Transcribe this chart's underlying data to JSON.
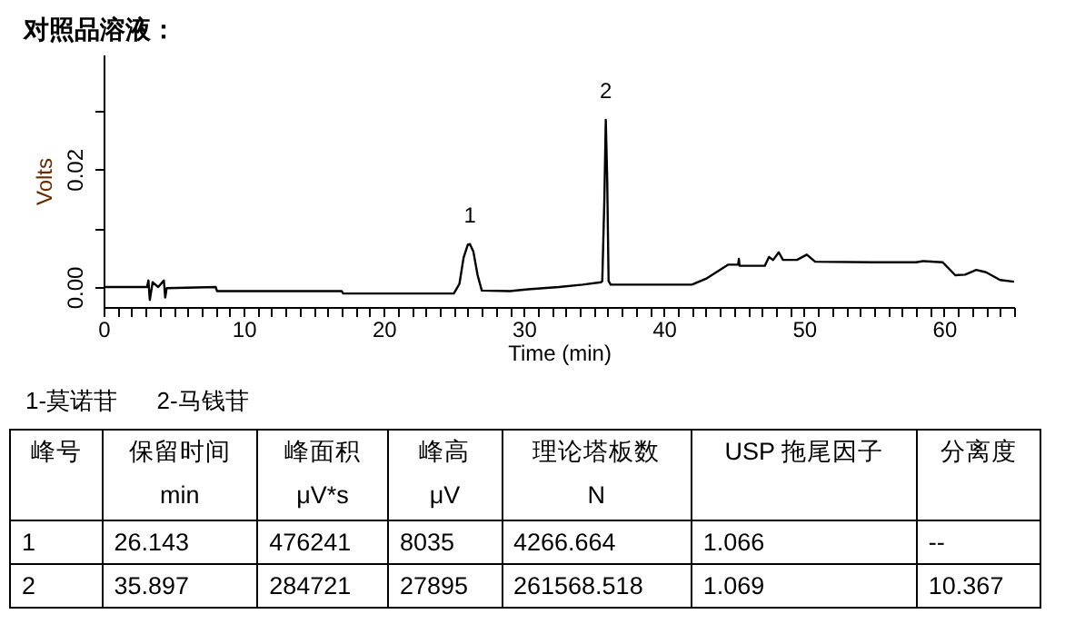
{
  "chart_data": [
    {
      "type": "line",
      "title": "对照品溶液：",
      "xlabel": "Time (min)",
      "ylabel": "Volts",
      "xlim": [
        0,
        65
      ],
      "ylim": [
        -0.0034,
        0.0395
      ],
      "xticks": [
        0,
        {
          "value": 1,
          "label": null
        },
        {
          "value": 2,
          "label": null
        },
        {
          "value": 3,
          "label": null
        },
        {
          "value": 4,
          "label": null
        },
        {
          "value": 5,
          "label": null
        },
        {
          "value": 6,
          "label": null
        },
        {
          "value": 7,
          "label": null
        },
        {
          "value": 8,
          "label": null
        },
        {
          "value": 9,
          "label": null
        },
        10,
        {
          "value": 11,
          "label": null
        },
        {
          "value": 12,
          "label": null
        },
        {
          "value": 13,
          "label": null
        },
        {
          "value": 14,
          "label": null
        },
        {
          "value": 15,
          "label": null
        },
        {
          "value": 16,
          "label": null
        },
        {
          "value": 17,
          "label": null
        },
        {
          "value": 18,
          "label": null
        },
        {
          "value": 19,
          "label": null
        },
        20,
        {
          "value": 21,
          "label": null
        },
        {
          "value": 22,
          "label": null
        },
        {
          "value": 23,
          "label": null
        },
        {
          "value": 24,
          "label": null
        },
        {
          "value": 25,
          "label": null
        },
        {
          "value": 26,
          "label": null
        },
        {
          "value": 27,
          "label": null
        },
        {
          "value": 28,
          "label": null
        },
        {
          "value": 29,
          "label": null
        },
        30,
        {
          "value": 31,
          "label": null
        },
        {
          "value": 32,
          "label": null
        },
        {
          "value": 33,
          "label": null
        },
        {
          "value": 34,
          "label": null
        },
        {
          "value": 35,
          "label": null
        },
        {
          "value": 36,
          "label": null
        },
        {
          "value": 37,
          "label": null
        },
        {
          "value": 38,
          "label": null
        },
        {
          "value": 39,
          "label": null
        },
        40,
        {
          "value": 41,
          "label": null
        },
        {
          "value": 42,
          "label": null
        },
        {
          "value": 43,
          "label": null
        },
        {
          "value": 44,
          "label": null
        },
        {
          "value": 45,
          "label": null
        },
        {
          "value": 46,
          "label": null
        },
        {
          "value": 47,
          "label": null
        },
        {
          "value": 48,
          "label": null
        },
        {
          "value": 49,
          "label": null
        },
        50,
        {
          "value": 51,
          "label": null
        },
        {
          "value": 52,
          "label": null
        },
        {
          "value": 53,
          "label": null
        },
        {
          "value": 54,
          "label": null
        },
        {
          "value": 55,
          "label": null
        },
        {
          "value": 56,
          "label": null
        },
        {
          "value": 57,
          "label": null
        },
        {
          "value": 58,
          "label": null
        },
        {
          "value": 59,
          "label": null
        },
        60,
        {
          "value": 61,
          "label": null
        },
        {
          "value": 62,
          "label": null
        },
        {
          "value": 63,
          "label": null
        },
        {
          "value": 64,
          "label": null
        },
        {
          "value": 65,
          "label": null
        }
      ],
      "yticks": [
        {
          "value": 0,
          "label": "0.00"
        },
        {
          "value": 0.01,
          "label": null
        },
        {
          "value": 0.02,
          "label": "0.02"
        },
        {
          "value": 0.03,
          "label": null
        }
      ],
      "x": [
        0,
        3.1,
        3.2,
        3.3,
        3.5,
        3.9,
        4.3,
        4.4,
        4.5,
        8,
        8.1,
        17,
        17.1,
        25,
        25.4,
        25.7,
        26,
        26.15,
        26.4,
        26.7,
        27,
        29,
        30.3,
        32.5,
        34.2,
        35.5,
        35.6,
        35.75,
        35.85,
        35.95,
        36.05,
        36.2,
        42,
        43,
        44.6,
        45.3,
        45.35,
        45.4,
        47.2,
        47.5,
        47.8,
        48.2,
        48.5,
        49.5,
        50.2,
        50.8,
        55,
        58,
        58.5,
        59.9,
        60.8,
        61.5,
        62.3,
        63,
        64,
        65
      ],
      "series": [
        {
          "color": "#000000",
          "values": [
            0,
            0,
            0.0011,
            -0.0022,
            0.0008,
            0,
            0.0011,
            -0.0018,
            -0.0002,
            0,
            -0.0007,
            -0.0007,
            -0.0011,
            -0.0011,
            0.0005,
            0.005,
            0.0072,
            0.0073,
            0.006,
            0.002,
            -0.0006,
            -0.0007,
            -0.0004,
            0,
            0.0004,
            0.0008,
            0.001,
            0.015,
            0.0284,
            0.0186,
            0.001,
            0.0004,
            0.0004,
            0.0014,
            0.0038,
            0.0038,
            0.0048,
            0.0036,
            0.0036,
            0.0051,
            0.0046,
            0.0059,
            0.0046,
            0.0046,
            0.0055,
            0.0043,
            0.0042,
            0.0042,
            0.0044,
            0.0042,
            0.002,
            0.0021,
            0.0029,
            0.0025,
            0.0012,
            0.0009
          ]
        }
      ],
      "annotations": [
        {
          "text": "1",
          "x": 26.15,
          "y": 0.0073
        },
        {
          "text": "2",
          "x": 35.85,
          "y": 0.0284
        },
        "1-莫诺苷      2-马钱苷"
      ]
    },
    {
      "type": "other",
      "categories": [
        "峰号",
        "保留时间\nmin",
        "峰面积\nμV*s",
        "峰高\nμV",
        "理论塔板数\nN",
        "USP 拖尾因子",
        "分离度"
      ],
      "annotations": [
        "1",
        "26.143",
        "476241",
        "8035",
        "4266.664",
        "1.066",
        "--",
        "2",
        "35.897",
        "284721",
        "27895",
        "261568.518",
        "1.069",
        "10.367"
      ]
    }
  ]
}
